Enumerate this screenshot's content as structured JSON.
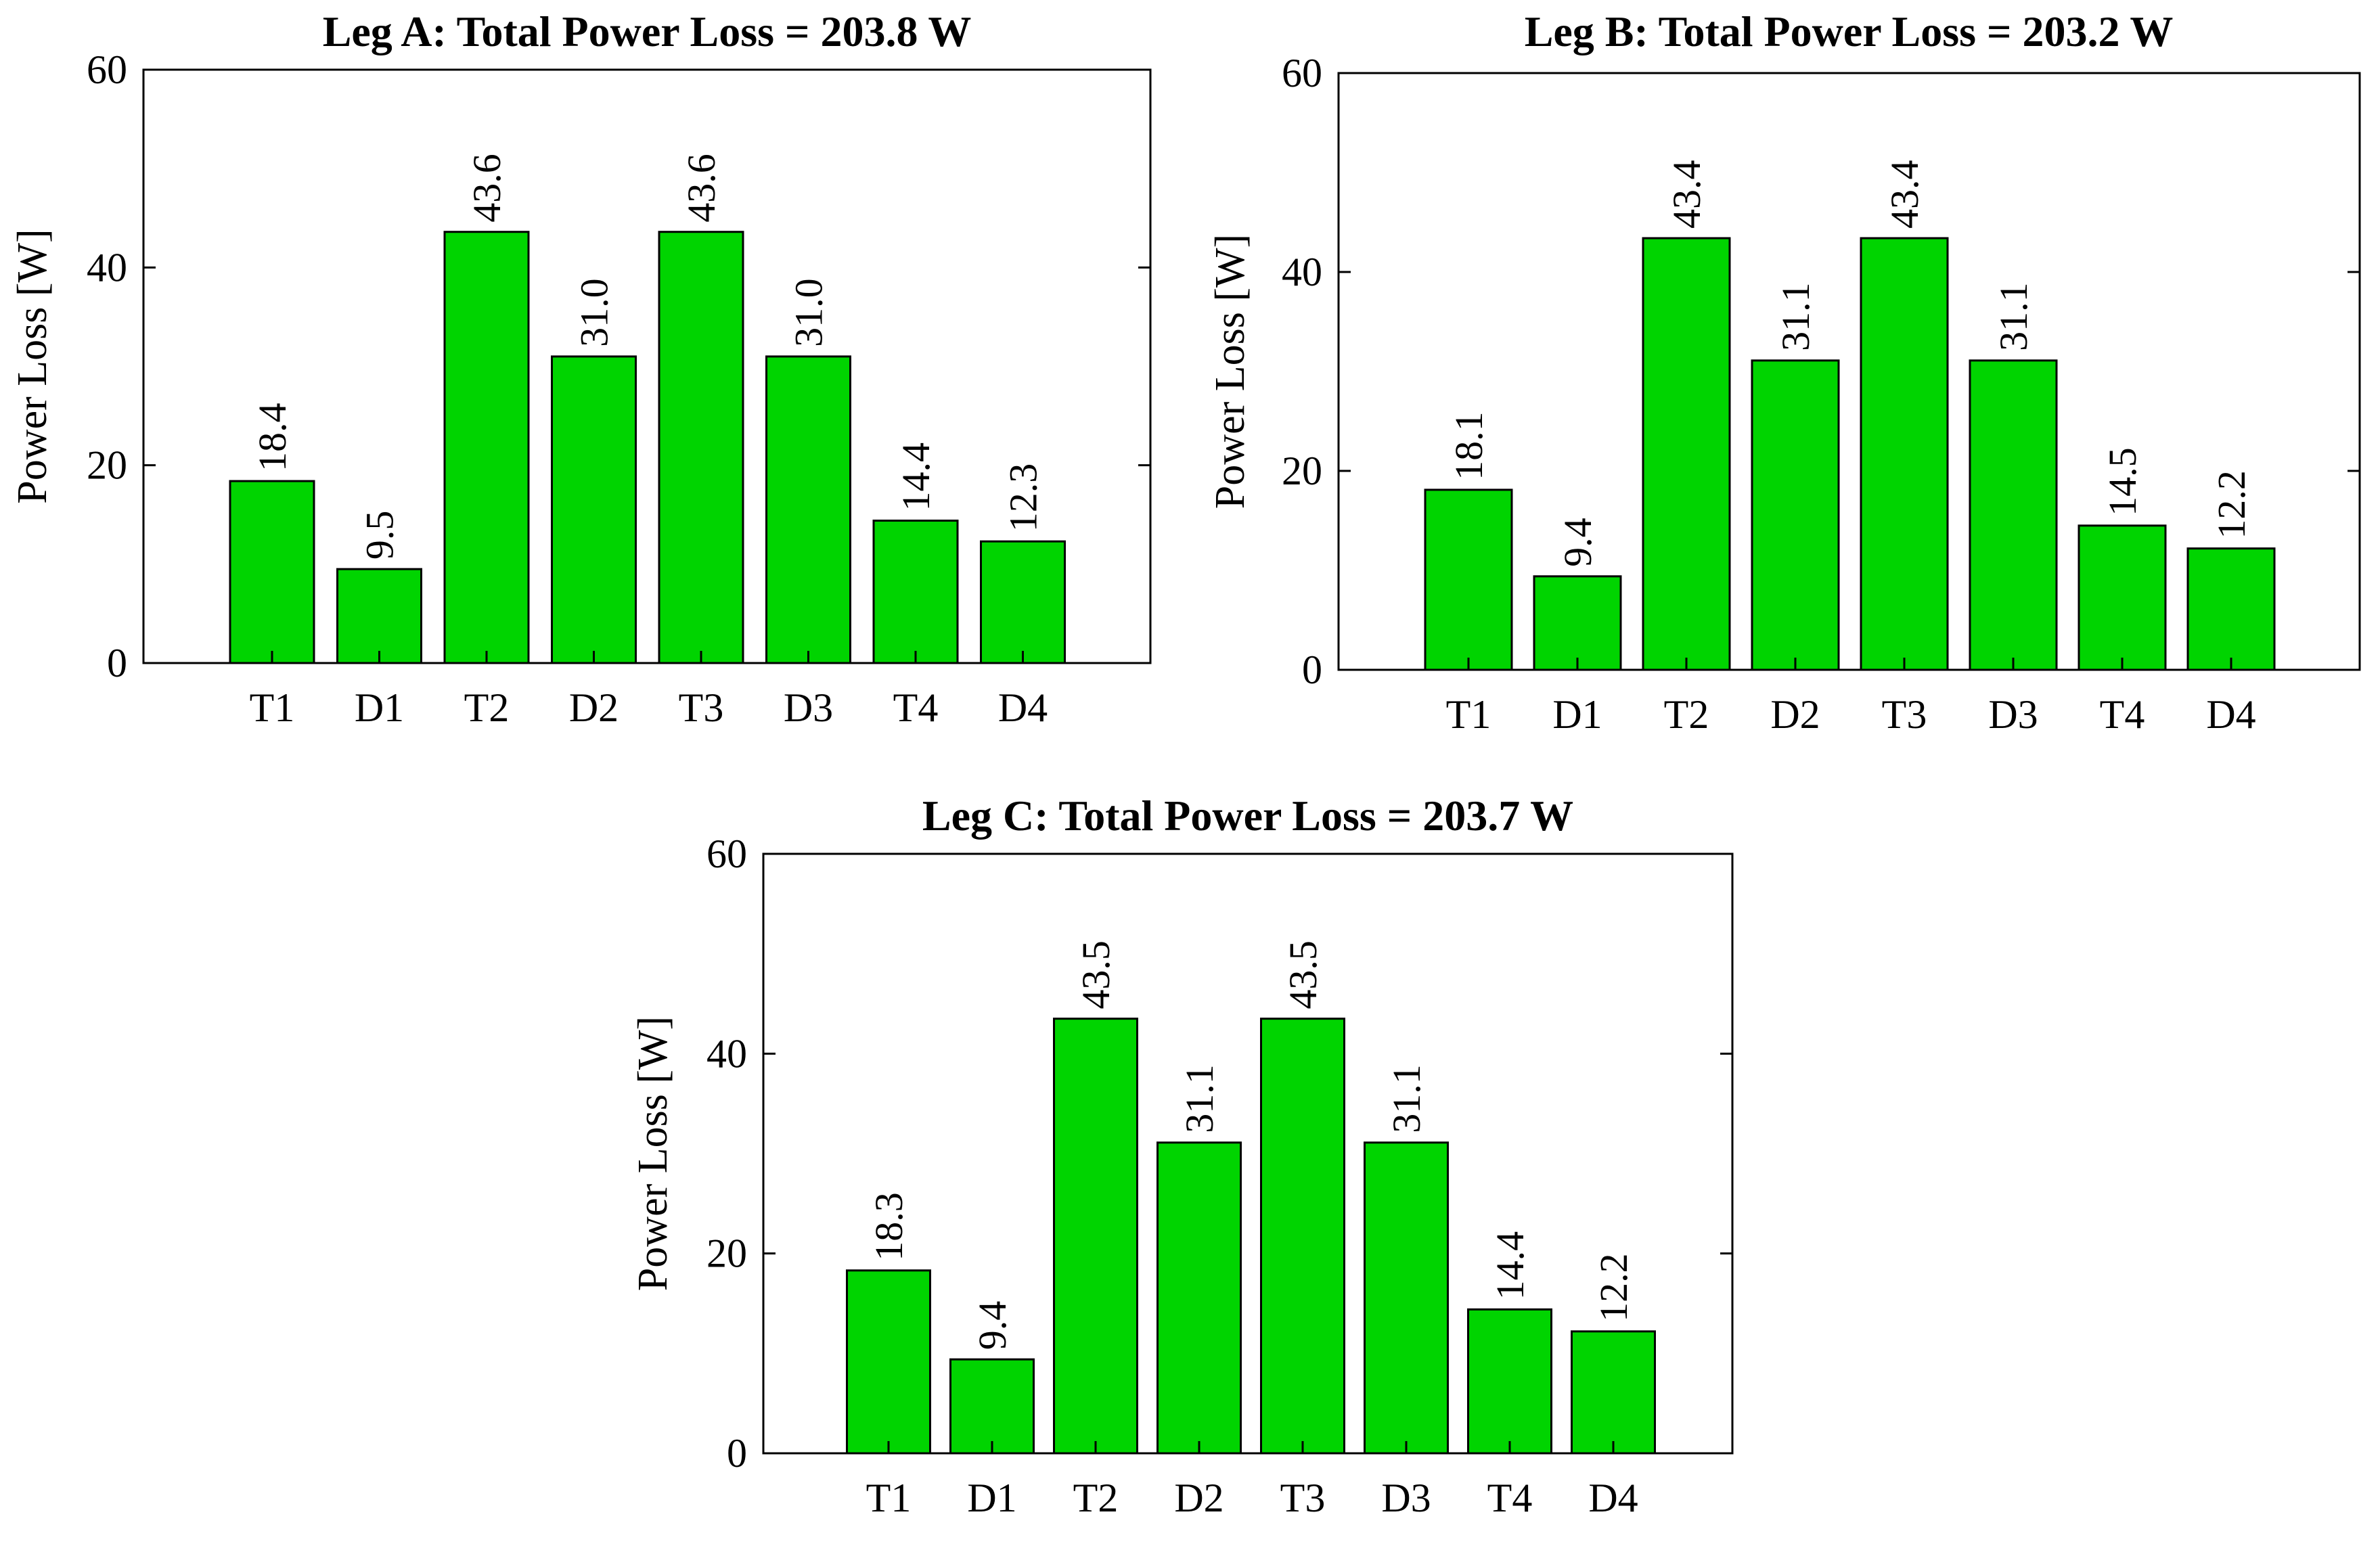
{
  "bar_color": "#00d400",
  "chart_data": [
    {
      "type": "bar",
      "title": "Leg A: Total Power Loss = 203.8 W",
      "xlabel": "",
      "ylabel": "Power Loss [W]",
      "categories": [
        "T1",
        "D1",
        "T2",
        "D2",
        "T3",
        "D3",
        "T4",
        "D4"
      ],
      "values": [
        18.4,
        9.5,
        43.6,
        31.0,
        43.6,
        31.0,
        14.4,
        12.3
      ],
      "value_labels": [
        "18.4",
        "9.5",
        "43.6",
        "31.0",
        "43.6",
        "31.0",
        "14.4",
        "12.3"
      ],
      "ylim": [
        0,
        60
      ],
      "yticks": [
        0,
        20,
        40,
        60
      ]
    },
    {
      "type": "bar",
      "title": "Leg B: Total Power Loss = 203.2 W",
      "xlabel": "",
      "ylabel": "Power Loss [W]",
      "categories": [
        "T1",
        "D1",
        "T2",
        "D2",
        "T3",
        "D3",
        "T4",
        "D4"
      ],
      "values": [
        18.1,
        9.4,
        43.4,
        31.1,
        43.4,
        31.1,
        14.5,
        12.2
      ],
      "value_labels": [
        "18.1",
        "9.4",
        "43.4",
        "31.1",
        "43.4",
        "31.1",
        "14.5",
        "12.2"
      ],
      "ylim": [
        0,
        60
      ],
      "yticks": [
        0,
        20,
        40,
        60
      ]
    },
    {
      "type": "bar",
      "title": "Leg C: Total Power Loss = 203.7 W",
      "xlabel": "",
      "ylabel": "Power Loss [W]",
      "categories": [
        "T1",
        "D1",
        "T2",
        "D2",
        "T3",
        "D3",
        "T4",
        "D4"
      ],
      "values": [
        18.3,
        9.4,
        43.5,
        31.1,
        43.5,
        31.1,
        14.4,
        12.2
      ],
      "value_labels": [
        "18.3",
        "9.4",
        "43.5",
        "31.1",
        "43.5",
        "31.1",
        "14.4",
        "12.2"
      ],
      "ylim": [
        0,
        60
      ],
      "yticks": [
        0,
        20,
        40,
        60
      ]
    }
  ]
}
